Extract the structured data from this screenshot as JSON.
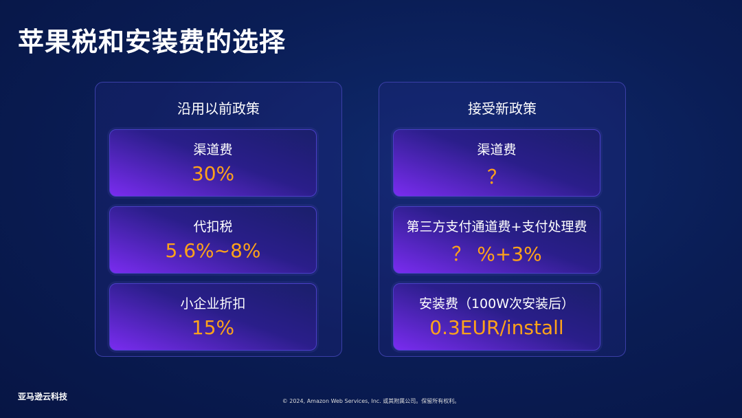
{
  "title": "苹果税和安装费的选择",
  "panels": [
    {
      "heading": "沿用以前政策",
      "cards": [
        {
          "label": "渠道费",
          "value": "30%"
        },
        {
          "label": "代扣税",
          "value": "5.6%~8%"
        },
        {
          "label": "小企业折扣",
          "value": "15%"
        }
      ]
    },
    {
      "heading": "接受新政策",
      "cards": [
        {
          "label": "渠道费",
          "value": "？"
        },
        {
          "label": "第三方支付通道费+支付处理费",
          "value": "？ %+3%"
        },
        {
          "label": "安装费（100W次安装后）",
          "value": "0.3EUR/install"
        }
      ]
    }
  ],
  "footer": {
    "logo": "亚马逊云科技",
    "copyright": "© 2024, Amazon Web Services, Inc. 或其附属公司。保留所有权利。"
  }
}
